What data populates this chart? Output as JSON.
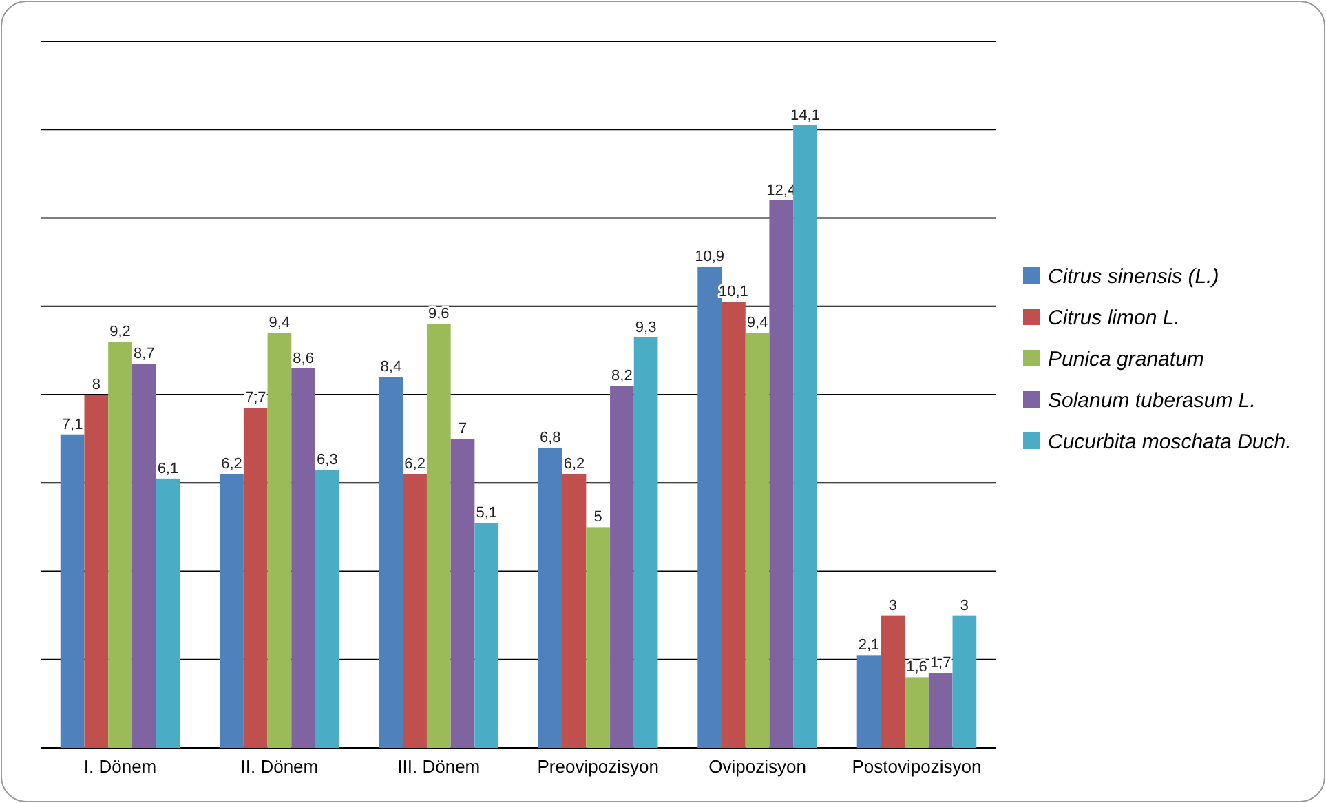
{
  "chart_data": {
    "type": "bar",
    "categories": [
      "I. Dönem",
      "II. Dönem",
      "III. Dönem",
      "Preovipozisyon",
      "Ovipozisyon",
      "Postovipozisyon"
    ],
    "series": [
      {
        "name": "Citrus sinensis (L.)",
        "color": "#4f81bd",
        "values": [
          7.1,
          6.2,
          8.4,
          6.8,
          10.9,
          2.1
        ],
        "value_labels": [
          "7,1",
          "6,2",
          "8,4",
          "6,8",
          "10,9",
          "2,1"
        ]
      },
      {
        "name": "Citrus limon L.",
        "color": "#c0504d",
        "values": [
          8,
          7.7,
          6.2,
          6.2,
          10.1,
          3
        ],
        "value_labels": [
          "8",
          "7,7",
          "6,2",
          "6,2",
          "10,1",
          "3"
        ]
      },
      {
        "name": "Punica granatum",
        "color": "#9bbb59",
        "values": [
          9.2,
          9.4,
          9.6,
          5,
          9.4,
          1.6
        ],
        "value_labels": [
          "9,2",
          "9,4",
          "9,6",
          "5",
          "9,4",
          "1,6"
        ]
      },
      {
        "name": "Solanum tuberasum L.",
        "color": "#8064a2",
        "values": [
          8.7,
          8.6,
          7,
          8.2,
          12.4,
          1.7
        ],
        "value_labels": [
          "8,7",
          "8,6",
          "7",
          "8,2",
          "12,4",
          "1,7"
        ]
      },
      {
        "name": "Cucurbita moschata Duch.",
        "color": "#4bacc6",
        "values": [
          6.1,
          6.3,
          5.1,
          9.3,
          14.1,
          3
        ],
        "value_labels": [
          "6,1",
          "6,3",
          "5,1",
          "9,3",
          "14,1",
          "3"
        ]
      }
    ],
    "ylim": [
      0,
      16
    ],
    "yticks": [
      {
        "value": 0,
        "label": null
      },
      {
        "value": 2,
        "label": null
      },
      {
        "value": 4,
        "label": null
      },
      {
        "value": 6,
        "label": null
      },
      {
        "value": 8,
        "label": null
      },
      {
        "value": 10,
        "label": null
      },
      {
        "value": 12,
        "label": null
      },
      {
        "value": 14,
        "label": null
      },
      {
        "value": 16,
        "label": null
      }
    ],
    "grid": "y",
    "legend": "right",
    "tick_labels": "x"
  }
}
